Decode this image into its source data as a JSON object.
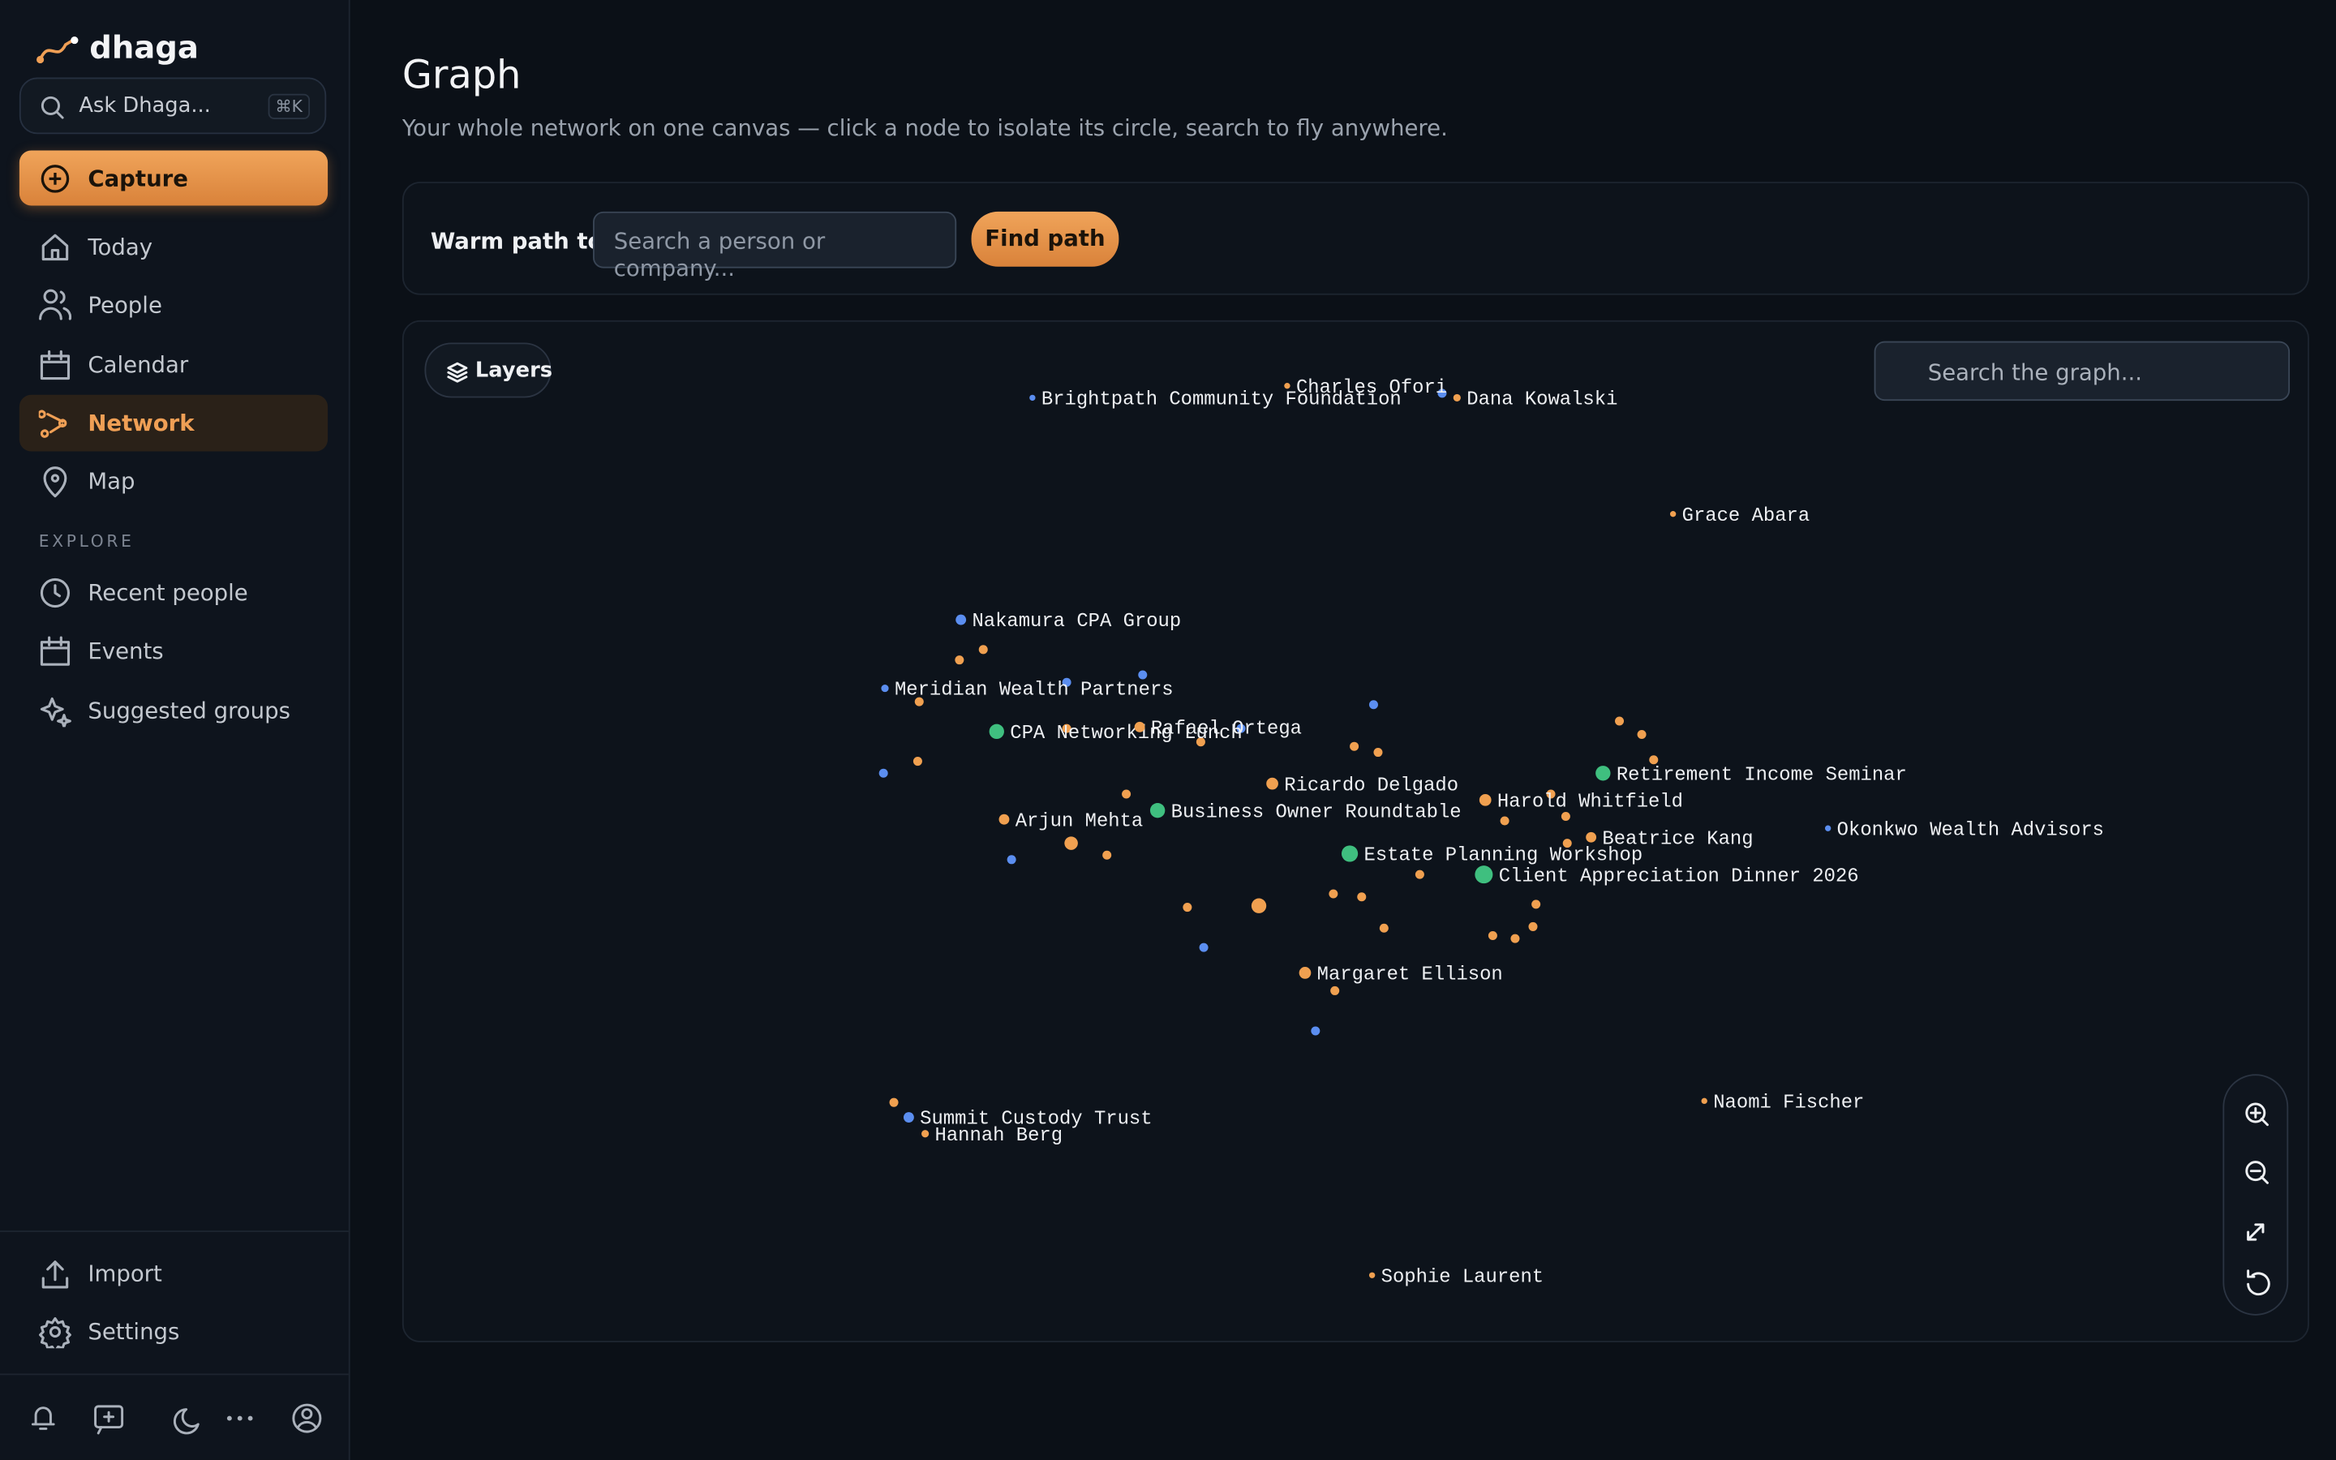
{
  "sidebar": {
    "brand": "dhaga",
    "search": "Ask Dhaga...",
    "shortcut": "⌘K",
    "capture": "Capture",
    "nav": [
      "Today",
      "People",
      "Calendar",
      "Network",
      "Map"
    ],
    "explore_title": "EXPLORE",
    "explore": [
      "Recent people",
      "Events",
      "Suggested groups"
    ],
    "footer": [
      "Import",
      "Settings"
    ]
  },
  "header": {
    "title": "Graph",
    "subtitle": "Your whole network on one canvas — click a node to isolate its circle, search to fly anywhere."
  },
  "warm_path": {
    "label": "Warm path to",
    "placeholder": "Search a person or company...",
    "button": "Find path"
  },
  "graph": {
    "layers": "Layers",
    "search": "Search the graph...",
    "nodes": [
      "Brightpath Community Foundation",
      "Charles Ofori",
      "Dana Kowalski",
      "Grace Abara",
      "Nakamura CPA Group",
      "Meridian Wealth Partners",
      "CPA Networking Lunch",
      "Rafael Ortega",
      "Ricardo Delgado",
      "Harold Whitfield",
      "Retirement Income Seminar",
      "Beatrice Kang",
      "Okonkwo Wealth Advisors",
      "Arjun Mehta",
      "Business Owner Roundtable",
      "Estate Planning Workshop",
      "Client Appreciation Dinner 2026",
      "Margaret Ellison",
      "Summit Custody Trust",
      "Hannah Berg",
      "Naomi Fischer",
      "Sophie Laurent"
    ]
  }
}
